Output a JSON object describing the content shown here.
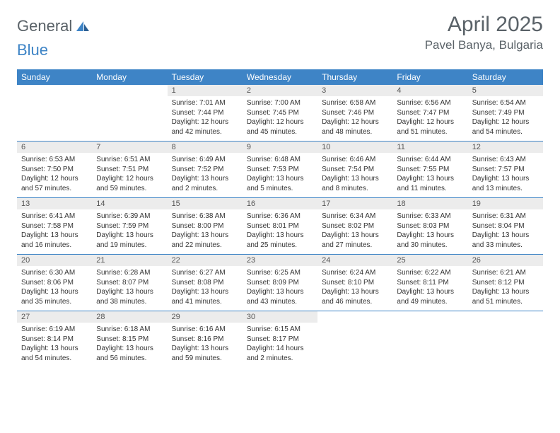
{
  "logo": {
    "text_a": "General",
    "text_b": "Blue"
  },
  "title": "April 2025",
  "location": "Pavel Banya, Bulgaria",
  "colors": {
    "header_bg": "#3e84c6",
    "header_text": "#ffffff",
    "daynum_bg": "#ececec",
    "border": "#3e84c6",
    "logo_gray": "#5a6268",
    "logo_blue": "#3e84c6"
  },
  "weekdays": [
    "Sunday",
    "Monday",
    "Tuesday",
    "Wednesday",
    "Thursday",
    "Friday",
    "Saturday"
  ],
  "weeks": [
    [
      {
        "empty": true
      },
      {
        "empty": true
      },
      {
        "num": "1",
        "sunrise": "Sunrise: 7:01 AM",
        "sunset": "Sunset: 7:44 PM",
        "daylight": "Daylight: 12 hours and 42 minutes."
      },
      {
        "num": "2",
        "sunrise": "Sunrise: 7:00 AM",
        "sunset": "Sunset: 7:45 PM",
        "daylight": "Daylight: 12 hours and 45 minutes."
      },
      {
        "num": "3",
        "sunrise": "Sunrise: 6:58 AM",
        "sunset": "Sunset: 7:46 PM",
        "daylight": "Daylight: 12 hours and 48 minutes."
      },
      {
        "num": "4",
        "sunrise": "Sunrise: 6:56 AM",
        "sunset": "Sunset: 7:47 PM",
        "daylight": "Daylight: 12 hours and 51 minutes."
      },
      {
        "num": "5",
        "sunrise": "Sunrise: 6:54 AM",
        "sunset": "Sunset: 7:49 PM",
        "daylight": "Daylight: 12 hours and 54 minutes."
      }
    ],
    [
      {
        "num": "6",
        "sunrise": "Sunrise: 6:53 AM",
        "sunset": "Sunset: 7:50 PM",
        "daylight": "Daylight: 12 hours and 57 minutes."
      },
      {
        "num": "7",
        "sunrise": "Sunrise: 6:51 AM",
        "sunset": "Sunset: 7:51 PM",
        "daylight": "Daylight: 12 hours and 59 minutes."
      },
      {
        "num": "8",
        "sunrise": "Sunrise: 6:49 AM",
        "sunset": "Sunset: 7:52 PM",
        "daylight": "Daylight: 13 hours and 2 minutes."
      },
      {
        "num": "9",
        "sunrise": "Sunrise: 6:48 AM",
        "sunset": "Sunset: 7:53 PM",
        "daylight": "Daylight: 13 hours and 5 minutes."
      },
      {
        "num": "10",
        "sunrise": "Sunrise: 6:46 AM",
        "sunset": "Sunset: 7:54 PM",
        "daylight": "Daylight: 13 hours and 8 minutes."
      },
      {
        "num": "11",
        "sunrise": "Sunrise: 6:44 AM",
        "sunset": "Sunset: 7:55 PM",
        "daylight": "Daylight: 13 hours and 11 minutes."
      },
      {
        "num": "12",
        "sunrise": "Sunrise: 6:43 AM",
        "sunset": "Sunset: 7:57 PM",
        "daylight": "Daylight: 13 hours and 13 minutes."
      }
    ],
    [
      {
        "num": "13",
        "sunrise": "Sunrise: 6:41 AM",
        "sunset": "Sunset: 7:58 PM",
        "daylight": "Daylight: 13 hours and 16 minutes."
      },
      {
        "num": "14",
        "sunrise": "Sunrise: 6:39 AM",
        "sunset": "Sunset: 7:59 PM",
        "daylight": "Daylight: 13 hours and 19 minutes."
      },
      {
        "num": "15",
        "sunrise": "Sunrise: 6:38 AM",
        "sunset": "Sunset: 8:00 PM",
        "daylight": "Daylight: 13 hours and 22 minutes."
      },
      {
        "num": "16",
        "sunrise": "Sunrise: 6:36 AM",
        "sunset": "Sunset: 8:01 PM",
        "daylight": "Daylight: 13 hours and 25 minutes."
      },
      {
        "num": "17",
        "sunrise": "Sunrise: 6:34 AM",
        "sunset": "Sunset: 8:02 PM",
        "daylight": "Daylight: 13 hours and 27 minutes."
      },
      {
        "num": "18",
        "sunrise": "Sunrise: 6:33 AM",
        "sunset": "Sunset: 8:03 PM",
        "daylight": "Daylight: 13 hours and 30 minutes."
      },
      {
        "num": "19",
        "sunrise": "Sunrise: 6:31 AM",
        "sunset": "Sunset: 8:04 PM",
        "daylight": "Daylight: 13 hours and 33 minutes."
      }
    ],
    [
      {
        "num": "20",
        "sunrise": "Sunrise: 6:30 AM",
        "sunset": "Sunset: 8:06 PM",
        "daylight": "Daylight: 13 hours and 35 minutes."
      },
      {
        "num": "21",
        "sunrise": "Sunrise: 6:28 AM",
        "sunset": "Sunset: 8:07 PM",
        "daylight": "Daylight: 13 hours and 38 minutes."
      },
      {
        "num": "22",
        "sunrise": "Sunrise: 6:27 AM",
        "sunset": "Sunset: 8:08 PM",
        "daylight": "Daylight: 13 hours and 41 minutes."
      },
      {
        "num": "23",
        "sunrise": "Sunrise: 6:25 AM",
        "sunset": "Sunset: 8:09 PM",
        "daylight": "Daylight: 13 hours and 43 minutes."
      },
      {
        "num": "24",
        "sunrise": "Sunrise: 6:24 AM",
        "sunset": "Sunset: 8:10 PM",
        "daylight": "Daylight: 13 hours and 46 minutes."
      },
      {
        "num": "25",
        "sunrise": "Sunrise: 6:22 AM",
        "sunset": "Sunset: 8:11 PM",
        "daylight": "Daylight: 13 hours and 49 minutes."
      },
      {
        "num": "26",
        "sunrise": "Sunrise: 6:21 AM",
        "sunset": "Sunset: 8:12 PM",
        "daylight": "Daylight: 13 hours and 51 minutes."
      }
    ],
    [
      {
        "num": "27",
        "sunrise": "Sunrise: 6:19 AM",
        "sunset": "Sunset: 8:14 PM",
        "daylight": "Daylight: 13 hours and 54 minutes."
      },
      {
        "num": "28",
        "sunrise": "Sunrise: 6:18 AM",
        "sunset": "Sunset: 8:15 PM",
        "daylight": "Daylight: 13 hours and 56 minutes."
      },
      {
        "num": "29",
        "sunrise": "Sunrise: 6:16 AM",
        "sunset": "Sunset: 8:16 PM",
        "daylight": "Daylight: 13 hours and 59 minutes."
      },
      {
        "num": "30",
        "sunrise": "Sunrise: 6:15 AM",
        "sunset": "Sunset: 8:17 PM",
        "daylight": "Daylight: 14 hours and 2 minutes."
      },
      {
        "empty": true
      },
      {
        "empty": true
      },
      {
        "empty": true
      }
    ]
  ]
}
